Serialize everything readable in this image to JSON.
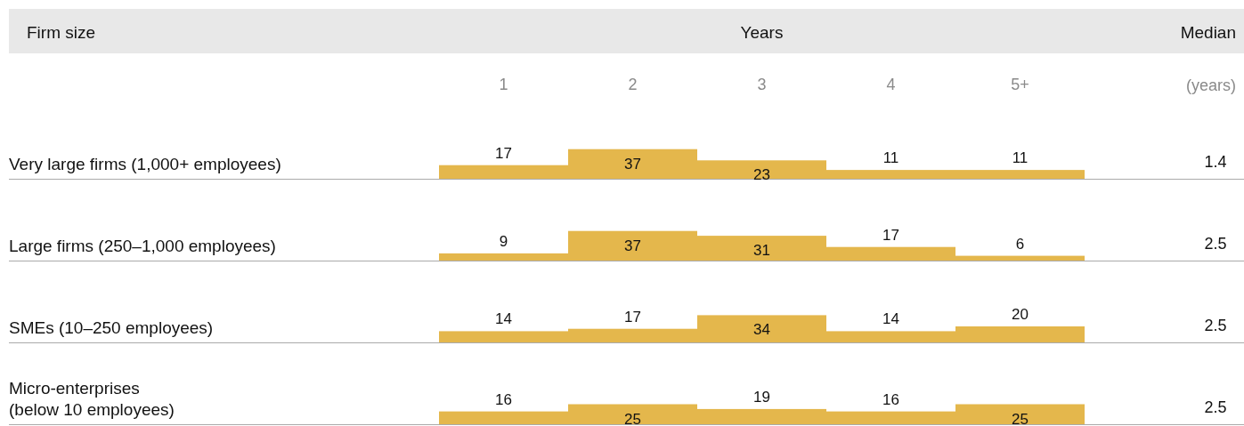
{
  "chart_data": [
    {
      "type": "bar",
      "ylabel": "Very large firms (1,000+ employees)",
      "xlabel": "Years",
      "categories": [
        "1",
        "2",
        "3",
        "4",
        "5+"
      ],
      "values": [
        17,
        37,
        23,
        11,
        11
      ],
      "color": "#e4b74c",
      "data_labels": true,
      "tick_labels": "x",
      "annotations": [
        "Firm size",
        "Median",
        "(years)",
        "1.4"
      ]
    },
    {
      "type": "bar",
      "ylabel": "Large firms (250–1,000 employees)",
      "categories": [
        null,
        null,
        null,
        null,
        null
      ],
      "values": [
        9,
        37,
        31,
        17,
        6
      ],
      "color": "#e4b74c",
      "data_labels": true,
      "annotations": [
        "2.5"
      ]
    },
    {
      "type": "bar",
      "ylabel": "SMEs (10–250 employees)",
      "categories": [
        null,
        null,
        null,
        null,
        null
      ],
      "values": [
        14,
        17,
        34,
        14,
        20
      ],
      "color": "#e4b74c",
      "data_labels": true,
      "annotations": [
        "2.5"
      ]
    },
    {
      "type": "bar",
      "ylabel": "Micro-enterprises\n(below 10 employees)",
      "categories": [
        null,
        null,
        null,
        null,
        null
      ],
      "values": [
        16,
        25,
        19,
        16,
        25
      ],
      "color": "#e4b74c",
      "data_labels": true,
      "annotations": [
        "2.5"
      ]
    }
  ]
}
